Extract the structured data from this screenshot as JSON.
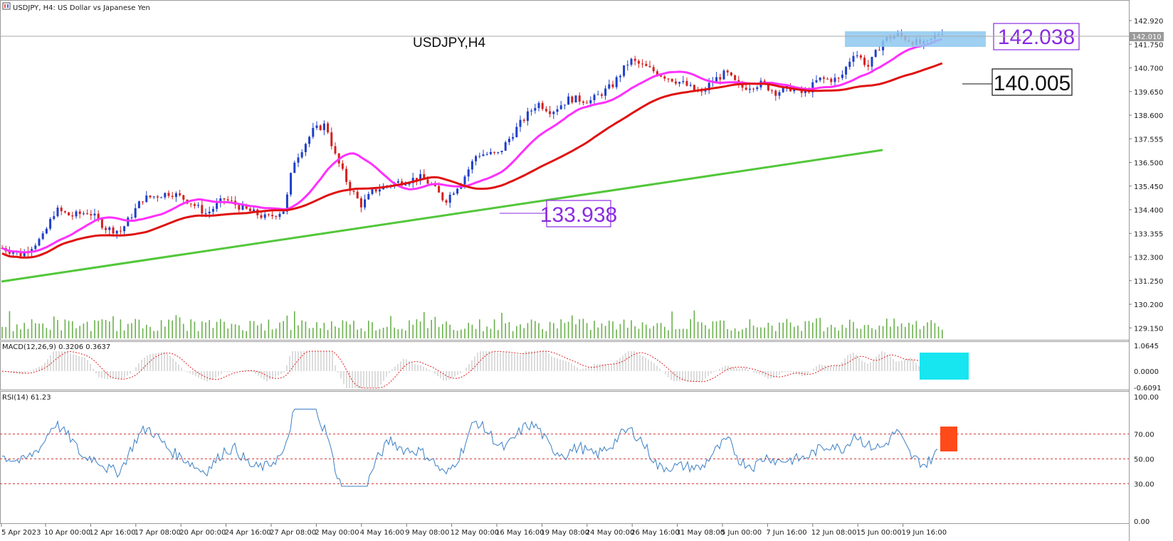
{
  "window": {
    "title": "USDJPY, H4:  US Dollar vs Japanese Yen"
  },
  "chart_label": "USDJPY,H4",
  "price_axis": [
    "142.920",
    "141.750",
    "140.700",
    "139.650",
    "138.600",
    "137.555",
    "136.500",
    "135.450",
    "134.400",
    "133.355",
    "132.300",
    "131.250",
    "130.200",
    "129.150"
  ],
  "current_price_tag": "142.010",
  "time_axis": [
    "5 Apr 2023",
    "10 Apr 00:00",
    "12 Apr 16:00",
    "17 Apr 08:00",
    "20 Apr 00:00",
    "24 Apr 16:00",
    "27 Apr 08:00",
    "2 May 00:00",
    "4 May 16:00",
    "9 May 08:00",
    "12 May 00:00",
    "16 May 16:00",
    "19 May 08:00",
    "24 May 00:00",
    "26 May 16:00",
    "31 May 08:00",
    "5 Jun 00:00",
    "7 Jun 16:00",
    "12 Jun 08:00",
    "15 Jun 00:00",
    "19 Jun 16:00"
  ],
  "annotations": {
    "high": "142.038",
    "ma": "140.005",
    "trend": "133.938"
  },
  "macd": {
    "label": "MACD(12,26,9) 0.3206 0.3637",
    "axis": [
      "1.0645",
      "0.0000",
      "-0.6091"
    ]
  },
  "rsi": {
    "label": "RSI(14) 61.23",
    "axis": [
      "100.00",
      "70.00",
      "50.00",
      "30.00",
      "0.00"
    ]
  },
  "colors": {
    "bull": "#1f3fc8",
    "bear": "#d42020",
    "ma_fast": "#ff30ff",
    "ma_slow": "#e01010",
    "trendline": "#52c73a",
    "volume": "#6ab04c",
    "rsi_line": "#3b7fc4",
    "level_line": "#d04040",
    "highlight_blue": "#8ec8f0",
    "highlight_cyan": "#17e5f0",
    "highlight_orange": "#ff4a1a",
    "annot_purple": "#8a2be2"
  }
}
